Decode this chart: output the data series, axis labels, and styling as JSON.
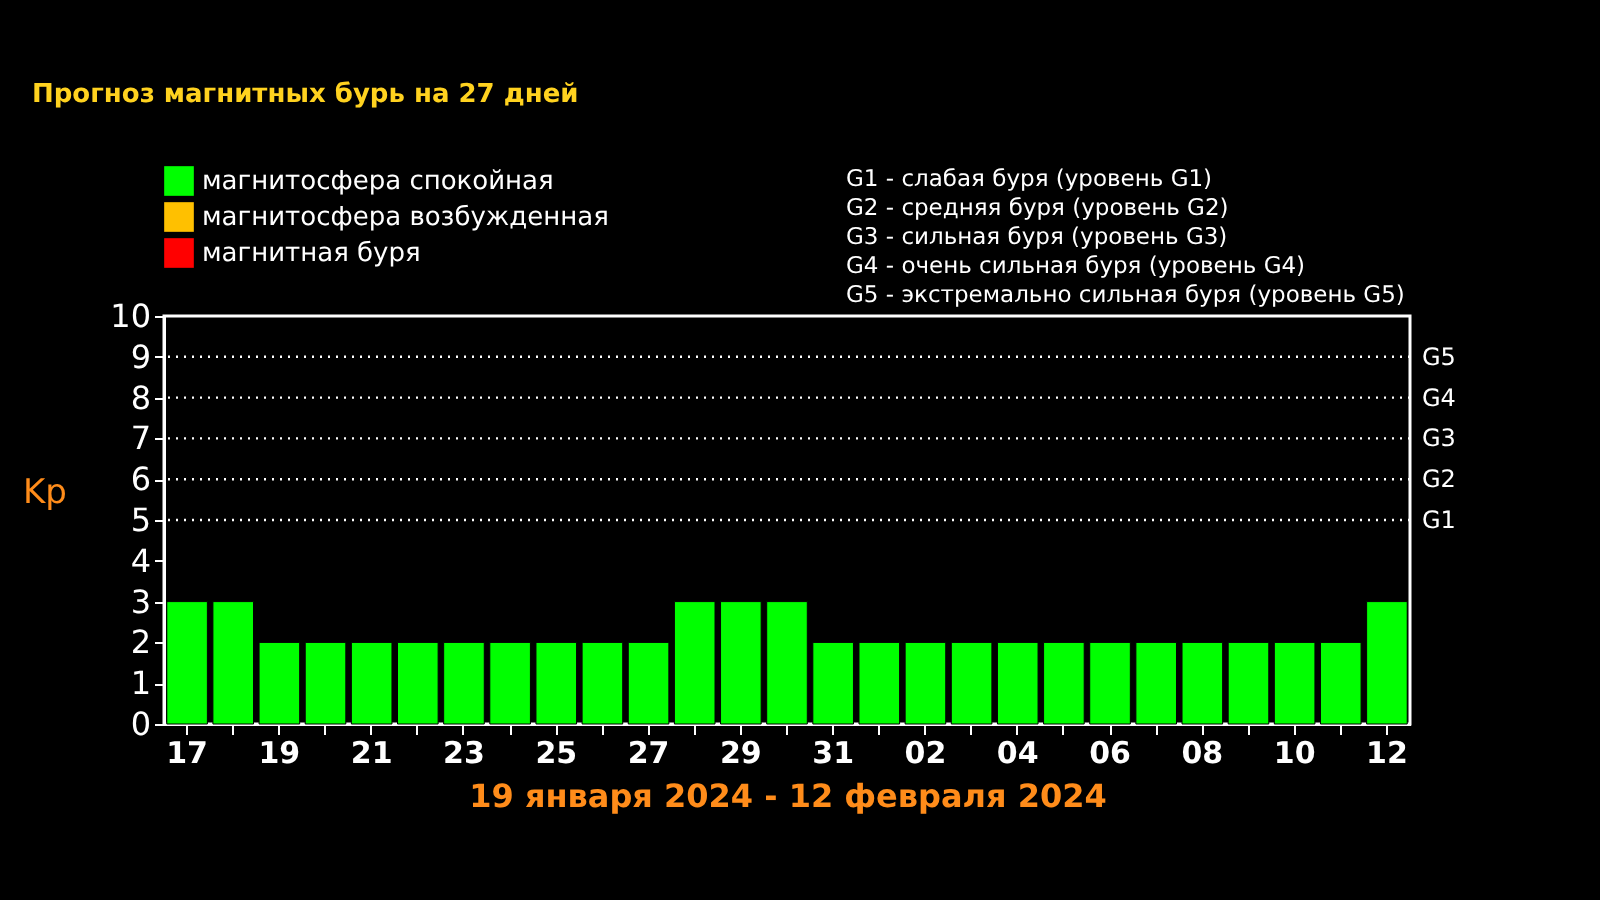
{
  "chart_data": {
    "type": "bar",
    "title": "Прогноз магнитных бурь на 27 дней",
    "xlabel": "19 января 2024 - 12 февраля 2024",
    "ylabel": "Kp",
    "categories": [
      "17",
      null,
      "19",
      null,
      "21",
      null,
      "23",
      null,
      "25",
      null,
      "27",
      null,
      "29",
      null,
      "31",
      null,
      "02",
      null,
      "04",
      null,
      "06",
      null,
      "08",
      null,
      "10",
      null,
      "12"
    ],
    "series": [
      {
        "name": "магнитосфера спокойная",
        "color": "#00ff00",
        "values": [
          3,
          3,
          2,
          2,
          2,
          2,
          2,
          2,
          2,
          2,
          2,
          3,
          3,
          3,
          2,
          2,
          2,
          2,
          2,
          2,
          2,
          2,
          2,
          2,
          2,
          2,
          3
        ]
      },
      {
        "name": "магнитосфера возбужденная",
        "color": "#ffc000",
        "values": [
          null,
          null,
          null,
          null,
          null,
          null,
          null,
          null,
          null,
          null,
          null,
          null,
          null,
          null,
          null,
          null,
          null,
          null,
          null,
          null,
          null,
          null,
          null,
          null,
          null,
          null,
          null
        ]
      },
      {
        "name": "магнитная буря",
        "color": "#ff0000",
        "values": [
          null,
          null,
          null,
          null,
          null,
          null,
          null,
          null,
          null,
          null,
          null,
          null,
          null,
          null,
          null,
          null,
          null,
          null,
          null,
          null,
          null,
          null,
          null,
          null,
          null,
          null,
          null
        ]
      }
    ],
    "ylim": [
      0,
      10
    ],
    "yticks": [
      0,
      1,
      2,
      3,
      4,
      5,
      6,
      7,
      8,
      9,
      10
    ],
    "legend": "top left",
    "ref_lines": [
      {
        "axis": "y",
        "value": 5,
        "label": "G1",
        "line_style": "dotted"
      },
      {
        "axis": "y",
        "value": 6,
        "label": "G2",
        "line_style": "dotted"
      },
      {
        "axis": "y",
        "value": 7,
        "label": "G3",
        "line_style": "dotted"
      },
      {
        "axis": "y",
        "value": 8,
        "label": "G4",
        "line_style": "dotted"
      },
      {
        "axis": "y",
        "value": 9,
        "label": "G5",
        "line_style": "dotted"
      }
    ],
    "annotations": [
      "G1 - слабая буря (уровень G1)",
      "G2 - средняя буря (уровень G2)",
      "G3 - сильная буря (уровень G3)",
      "G4 - очень сильная буря (уровень G4)",
      "G5 - экстремально сильная буря (уровень G5)"
    ]
  }
}
